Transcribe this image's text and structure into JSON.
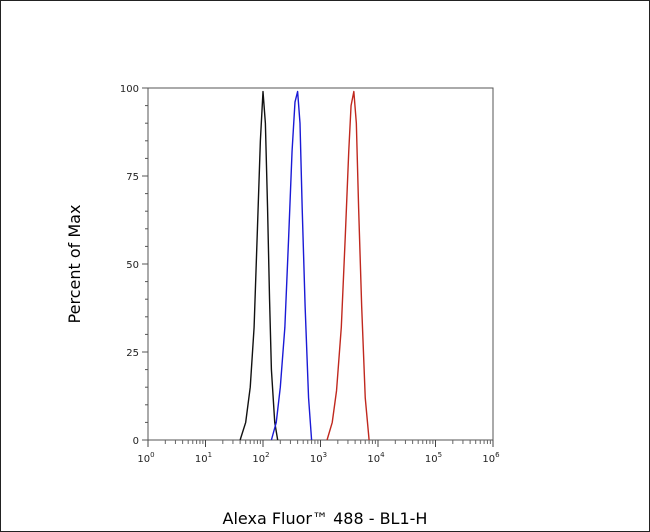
{
  "chart_data": {
    "type": "line",
    "title": "",
    "xlabel": "Alexa Fluor™ 488 - BL1-H",
    "ylabel": "Percent of Max",
    "x_scale": "log",
    "xlim": [
      1,
      1000000
    ],
    "ylim": [
      0,
      100
    ],
    "x_ticks": [
      {
        "value": 1,
        "base": "10",
        "exp": "0"
      },
      {
        "value": 10,
        "base": "10",
        "exp": "1"
      },
      {
        "value": 100,
        "base": "10",
        "exp": "2"
      },
      {
        "value": 1000,
        "base": "10",
        "exp": "3"
      },
      {
        "value": 10000,
        "base": "10",
        "exp": "4"
      },
      {
        "value": 100000,
        "base": "10",
        "exp": "5"
      },
      {
        "value": 1000000,
        "base": "10",
        "exp": "6"
      }
    ],
    "y_ticks": [
      "0",
      "25",
      "50",
      "75",
      "100"
    ],
    "grid": false,
    "legend": "none",
    "series": [
      {
        "color": "#111111",
        "x": [
          40,
          50,
          60,
          70,
          80,
          90,
          100,
          110,
          120,
          130,
          140,
          160,
          180
        ],
        "y": [
          0,
          5,
          15,
          32,
          60,
          85,
          99,
          90,
          66,
          40,
          20,
          5,
          0
        ]
      },
      {
        "color": "#1a1ad6",
        "x": [
          140,
          170,
          200,
          240,
          280,
          320,
          360,
          400,
          440,
          480,
          540,
          620,
          700
        ],
        "y": [
          0,
          5,
          15,
          32,
          58,
          82,
          96,
          99,
          90,
          66,
          38,
          12,
          0
        ]
      },
      {
        "color": "#c0281e",
        "x": [
          1300,
          1600,
          1900,
          2300,
          2700,
          3100,
          3400,
          3800,
          4200,
          4600,
          5200,
          6000,
          7000
        ],
        "y": [
          0,
          5,
          14,
          32,
          58,
          82,
          95,
          99,
          90,
          66,
          38,
          12,
          0
        ]
      }
    ]
  }
}
